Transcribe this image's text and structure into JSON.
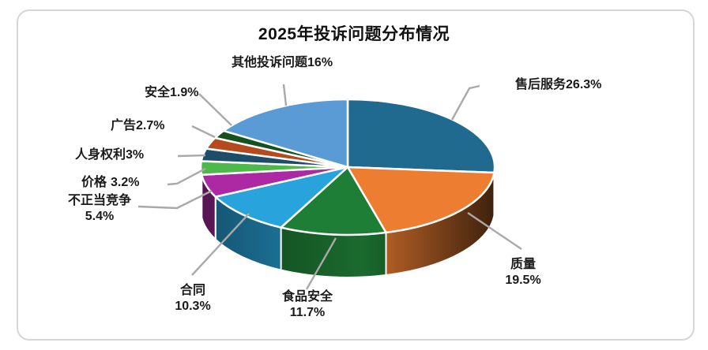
{
  "chart_data": {
    "type": "pie",
    "style": "3d-pie",
    "title": "2025年投诉问题分布情况",
    "unit": "%",
    "start_angle_deg": 270,
    "direction": "clockwise",
    "legend": "none",
    "label_color": "#1a1a1a",
    "leader_line_color": "#a9a9a9",
    "frame_border_color": "#d6d6d6",
    "slices": [
      {
        "key": "after-sales-service",
        "name": "售后服务",
        "value": 26.3,
        "pct_label": "26.3%",
        "color": "#1F6A8E"
      },
      {
        "key": "quality",
        "name": "质量",
        "value": 19.5,
        "pct_label": "19.5%",
        "color": "#ED7D31"
      },
      {
        "key": "food-safety",
        "name": "食品安全",
        "value": 11.7,
        "pct_label": "11.7%",
        "color": "#1F7E36"
      },
      {
        "key": "contract",
        "name": "合同",
        "value": 10.3,
        "pct_label": "10.3%",
        "color": "#28A3DB"
      },
      {
        "key": "unfair-competition",
        "name": "不正当竞争",
        "value": 5.4,
        "pct_label": "5.4%",
        "color": "#AC29A3"
      },
      {
        "key": "price",
        "name": "价格",
        "value": 3.2,
        "pct_label": "3.2%",
        "color": "#4FB84A"
      },
      {
        "key": "personal-rights",
        "name": "人身权利",
        "value": 3,
        "pct_label": "3%",
        "color": "#1D4D68"
      },
      {
        "key": "advertising",
        "name": "广告",
        "value": 2.7,
        "pct_label": "2.7%",
        "color": "#B54A1E"
      },
      {
        "key": "safety",
        "name": "安全",
        "value": 1.9,
        "pct_label": "1.9%",
        "color": "#17501F"
      },
      {
        "key": "other-complaints",
        "name": "其他投诉问题",
        "value": 16,
        "pct_label": "16%",
        "color": "#5B9BD5"
      }
    ]
  }
}
